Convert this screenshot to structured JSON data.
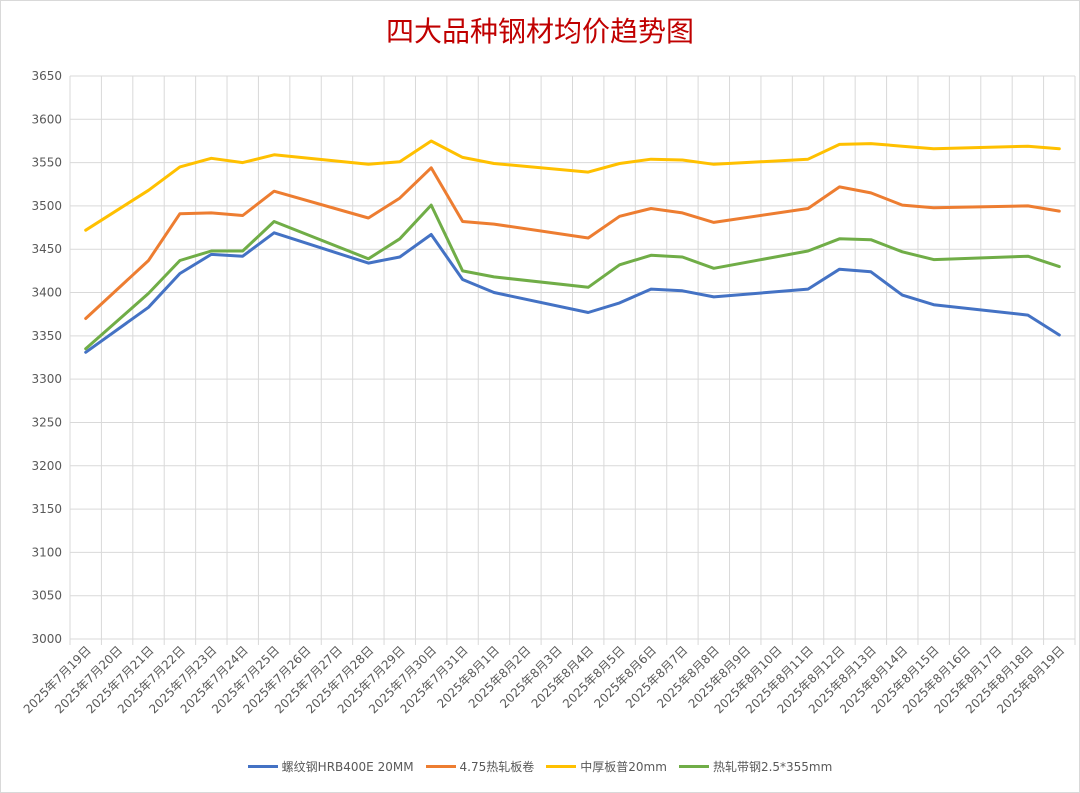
{
  "chart_data": {
    "type": "line",
    "title": "四大品种钢材均价趋势图",
    "xlabel": "",
    "ylabel": "",
    "ylim": [
      3000,
      3650
    ],
    "yticks": [
      3000,
      3050,
      3100,
      3150,
      3200,
      3250,
      3300,
      3350,
      3400,
      3450,
      3500,
      3550,
      3600,
      3650
    ],
    "grid": true,
    "legend_position": "bottom",
    "categories": [
      "2025年7月19日",
      "2025年7月20日",
      "2025年7月21日",
      "2025年7月22日",
      "2025年7月23日",
      "2025年7月24日",
      "2025年7月25日",
      "2025年7月26日",
      "2025年7月27日",
      "2025年7月28日",
      "2025年7月29日",
      "2025年7月30日",
      "2025年7月31日",
      "2025年8月1日",
      "2025年8月2日",
      "2025年8月3日",
      "2025年8月4日",
      "2025年8月5日",
      "2025年8月6日",
      "2025年8月7日",
      "2025年8月8日",
      "2025年8月9日",
      "2025年8月10日",
      "2025年8月11日",
      "2025年8月12日",
      "2025年8月13日",
      "2025年8月14日",
      "2025年8月15日",
      "2025年8月16日",
      "2025年8月17日",
      "2025年8月18日",
      "2025年8月19日"
    ],
    "series": [
      {
        "name": "螺纹钢HRB400E 20MM",
        "color": "#4472c4",
        "points": [
          [
            0,
            3331
          ],
          [
            2,
            3383
          ],
          [
            3,
            3422
          ],
          [
            4,
            3444
          ],
          [
            5,
            3442
          ],
          [
            6,
            3469
          ],
          [
            9,
            3434
          ],
          [
            10,
            3441
          ],
          [
            11,
            3467
          ],
          [
            12,
            3415
          ],
          [
            13,
            3400
          ],
          [
            16,
            3377
          ],
          [
            17,
            3388
          ],
          [
            18,
            3404
          ],
          [
            19,
            3402
          ],
          [
            20,
            3395
          ],
          [
            23,
            3404
          ],
          [
            24,
            3427
          ],
          [
            25,
            3424
          ],
          [
            26,
            3397
          ],
          [
            27,
            3386
          ],
          [
            30,
            3374
          ],
          [
            31,
            3351
          ]
        ]
      },
      {
        "name": "4.75热轧板卷",
        "color": "#ed7d31",
        "points": [
          [
            0,
            3370
          ],
          [
            2,
            3437
          ],
          [
            3,
            3491
          ],
          [
            4,
            3492
          ],
          [
            5,
            3489
          ],
          [
            6,
            3517
          ],
          [
            9,
            3486
          ],
          [
            10,
            3509
          ],
          [
            11,
            3544
          ],
          [
            12,
            3482
          ],
          [
            13,
            3479
          ],
          [
            16,
            3463
          ],
          [
            17,
            3488
          ],
          [
            18,
            3497
          ],
          [
            19,
            3492
          ],
          [
            20,
            3481
          ],
          [
            23,
            3497
          ],
          [
            24,
            3522
          ],
          [
            25,
            3515
          ],
          [
            26,
            3501
          ],
          [
            27,
            3498
          ],
          [
            30,
            3500
          ],
          [
            31,
            3494
          ]
        ]
      },
      {
        "name": "中厚板普20mm",
        "color": "#ffc000",
        "points": [
          [
            0,
            3472
          ],
          [
            2,
            3518
          ],
          [
            3,
            3545
          ],
          [
            4,
            3555
          ],
          [
            5,
            3550
          ],
          [
            6,
            3559
          ],
          [
            9,
            3548
          ],
          [
            10,
            3551
          ],
          [
            11,
            3575
          ],
          [
            12,
            3556
          ],
          [
            13,
            3549
          ],
          [
            16,
            3539
          ],
          [
            17,
            3549
          ],
          [
            18,
            3554
          ],
          [
            19,
            3553
          ],
          [
            20,
            3548
          ],
          [
            23,
            3554
          ],
          [
            24,
            3571
          ],
          [
            25,
            3572
          ],
          [
            26,
            3569
          ],
          [
            27,
            3566
          ],
          [
            30,
            3569
          ],
          [
            31,
            3566
          ]
        ]
      },
      {
        "name": "热轧带钢2.5*355mm",
        "color": "#70ad47",
        "points": [
          [
            0,
            3335
          ],
          [
            2,
            3399
          ],
          [
            3,
            3437
          ],
          [
            4,
            3448
          ],
          [
            5,
            3448
          ],
          [
            6,
            3482
          ],
          [
            9,
            3439
          ],
          [
            10,
            3462
          ],
          [
            11,
            3501
          ],
          [
            12,
            3425
          ],
          [
            13,
            3418
          ],
          [
            16,
            3406
          ],
          [
            17,
            3432
          ],
          [
            18,
            3443
          ],
          [
            19,
            3441
          ],
          [
            20,
            3428
          ],
          [
            23,
            3448
          ],
          [
            24,
            3462
          ],
          [
            25,
            3461
          ],
          [
            26,
            3447
          ],
          [
            27,
            3438
          ],
          [
            30,
            3442
          ],
          [
            31,
            3430
          ]
        ]
      }
    ]
  }
}
